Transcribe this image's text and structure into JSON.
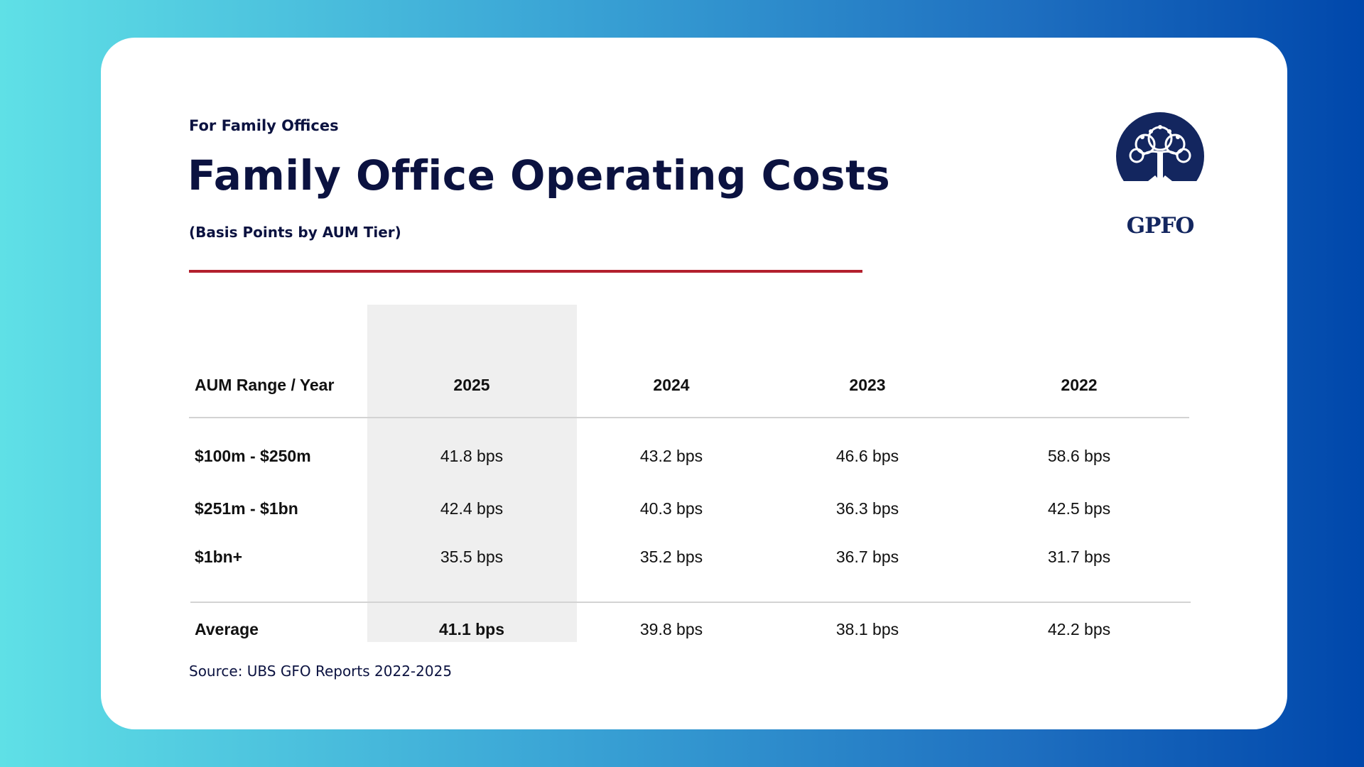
{
  "header": {
    "eyebrow": "For Family Offices",
    "title": "Family Office Operating Costs",
    "subtitle": "(Basis Points by AUM Tier)"
  },
  "logo": {
    "text": "GPFO",
    "icon": "tree-icon"
  },
  "table": {
    "corner_label": "AUM Range / Year",
    "years": [
      "2025",
      "2024",
      "2023",
      "2022"
    ],
    "rows": [
      {
        "label": "$100m - $250m",
        "values": [
          "41.8 bps",
          "43.2 bps",
          "46.6 bps",
          "58.6 bps"
        ]
      },
      {
        "label": "$251m - $1bn",
        "values": [
          "42.4 bps",
          "40.3 bps",
          "36.3 bps",
          "42.5 bps"
        ]
      },
      {
        "label": "$1bn+",
        "values": [
          "35.5 bps",
          "35.2 bps",
          "36.7 bps",
          "31.7 bps"
        ]
      }
    ],
    "average": {
      "label": "Average",
      "values": [
        "41.1 bps",
        "39.8 bps",
        "38.1 bps",
        "42.2 bps"
      ]
    },
    "highlighted_year": "2025"
  },
  "footer": {
    "source": "Source: UBS GFO Reports 2022-2025"
  },
  "colors": {
    "navy": "#0b1240",
    "accent_red": "#b3202e",
    "highlight_column": "#efefef",
    "logo_navy": "#13265f"
  }
}
